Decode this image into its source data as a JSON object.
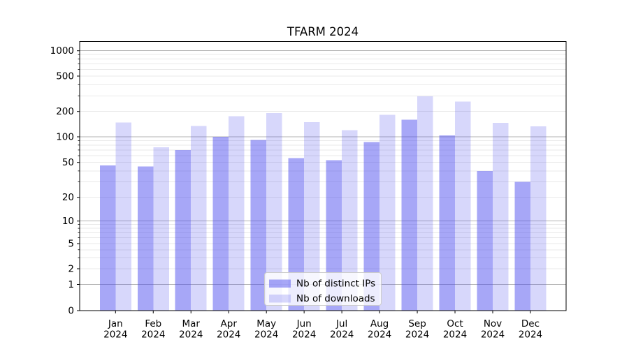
{
  "chart_data": {
    "type": "bar",
    "title": "TFARM 2024",
    "categories": [
      "Jan",
      "Feb",
      "Mar",
      "Apr",
      "May",
      "Jun",
      "Jul",
      "Aug",
      "Sep",
      "Oct",
      "Nov",
      "Dec"
    ],
    "year_label": "2024",
    "series": [
      {
        "name": "Nb of distinct IPs",
        "color": "rgba(68,68,238,0.47)",
        "values": [
          46,
          45,
          70,
          100,
          92,
          56,
          53,
          87,
          160,
          104,
          40,
          30
        ]
      },
      {
        "name": "Nb of downloads",
        "color": "rgba(68,68,238,0.21)",
        "values": [
          148,
          75,
          135,
          175,
          192,
          149,
          120,
          182,
          295,
          258,
          146,
          133
        ]
      }
    ],
    "y_axis": {
      "scale": "asinh",
      "ticks": [
        0,
        1,
        2,
        5,
        10,
        20,
        50,
        100,
        200,
        500,
        1000
      ],
      "major_decades": [
        1,
        10,
        100,
        1000
      ],
      "minor_ticks": [
        3,
        4,
        6,
        7,
        8,
        9,
        30,
        40,
        60,
        70,
        80,
        90,
        300,
        400,
        600,
        700,
        800,
        900
      ],
      "ylim": [
        0,
        1000
      ]
    },
    "legend": {
      "position": "lower center",
      "entries": [
        "Nb of distinct IPs",
        "Nb of downloads"
      ]
    },
    "grid": "on",
    "colors": {
      "major_grid": "#b3b3b3",
      "minor_grid": "#e9e9e9",
      "axis": "#000000",
      "legend_border": "#cccccc",
      "legend_fill": "rgba(255,255,255,0.8)"
    }
  }
}
